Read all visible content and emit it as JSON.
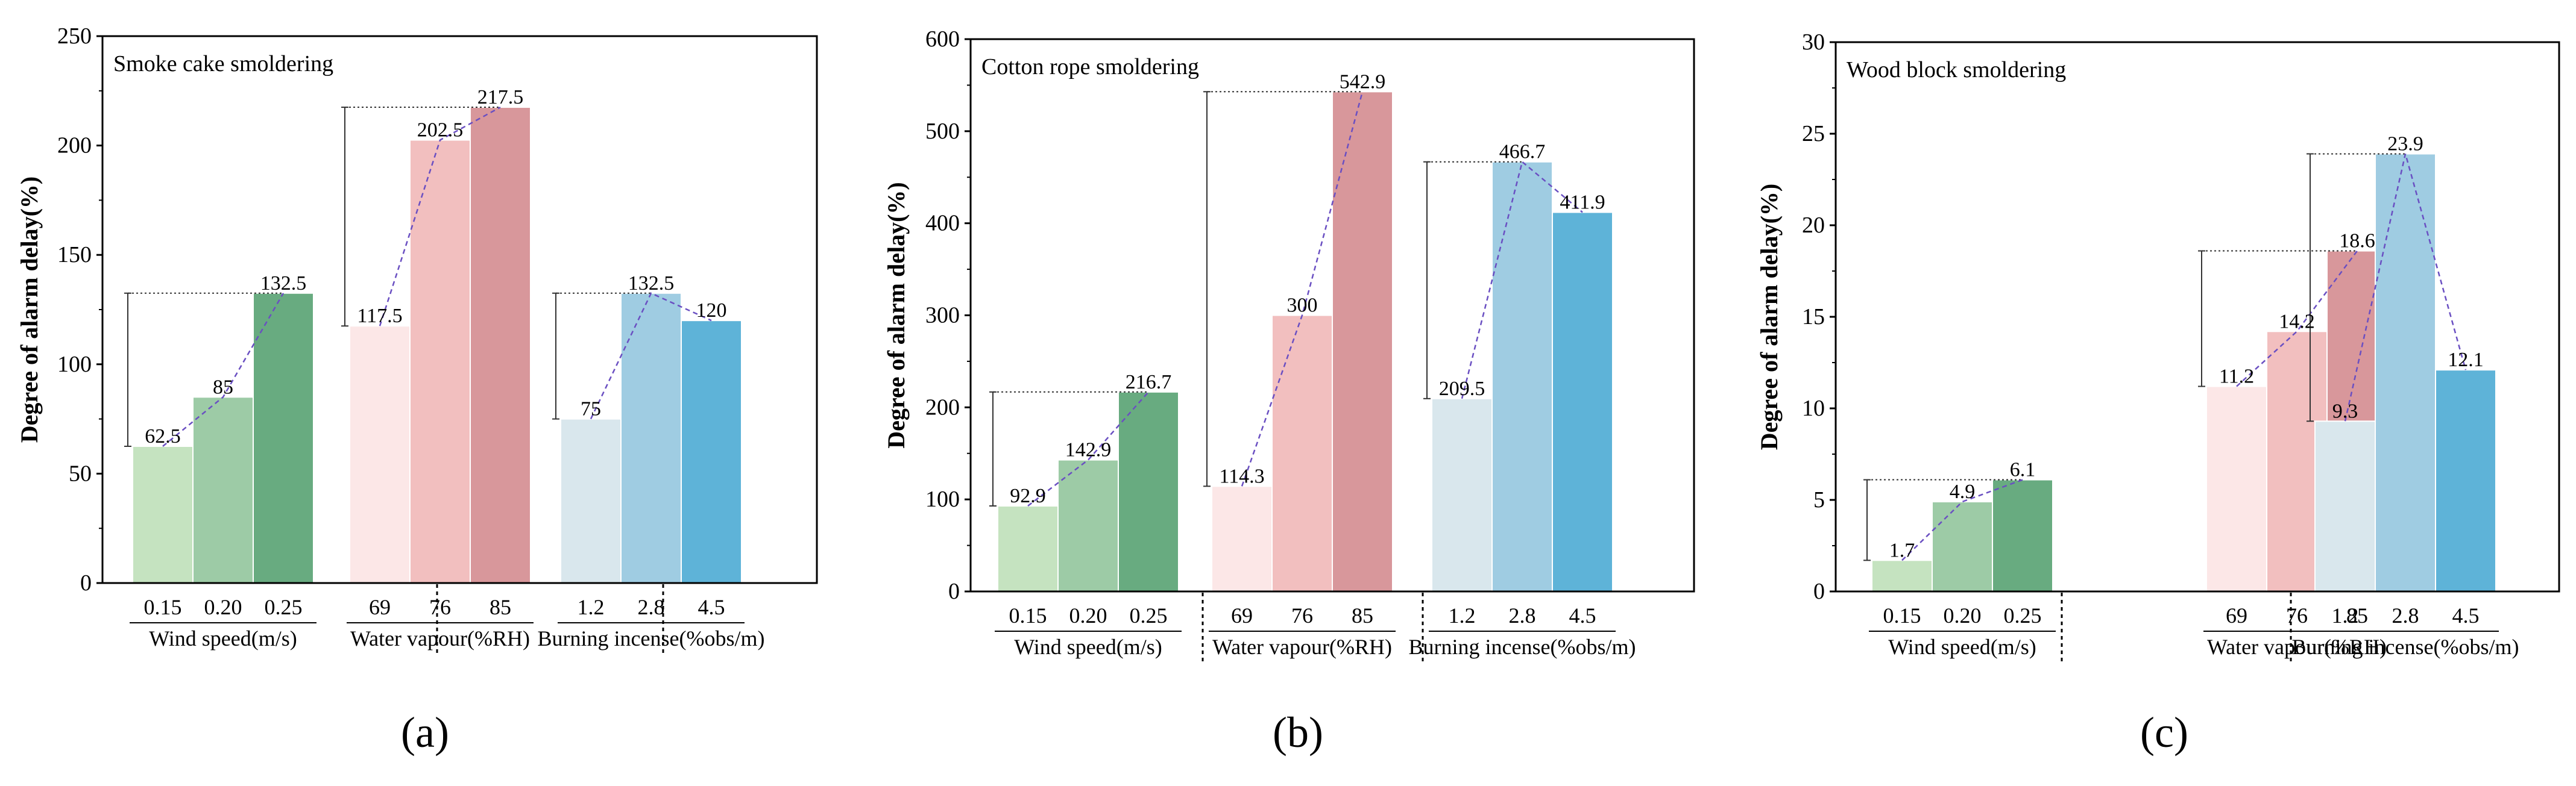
{
  "chart_data": [
    {
      "type": "bar",
      "panel_label": "(a)",
      "title": "Smoke cake smoldering",
      "ylabel": "Degree of alarm delay(%)",
      "ylim": [
        0,
        250
      ],
      "yticks": [
        0,
        50,
        100,
        150,
        200,
        250
      ],
      "groups": [
        {
          "name": "Wind speed(m/s)",
          "categories": [
            "0.15",
            "0.20",
            "0.25"
          ],
          "values": [
            62.5,
            85,
            132.5
          ],
          "labels": [
            "62.5",
            "85",
            "132.5"
          ],
          "colors": [
            "#c5e3c0",
            "#9dcba6",
            "#68ab80"
          ]
        },
        {
          "name": "Water vapour(%RH)",
          "categories": [
            "69",
            "76",
            "85"
          ],
          "values": [
            117.5,
            202.5,
            217.5
          ],
          "labels": [
            "117.5",
            "202.5",
            "217.5"
          ],
          "colors": [
            "#fce7e7",
            "#f2bfbf",
            "#d8979b"
          ]
        },
        {
          "name": "Burning incense(%obs/m)",
          "categories": [
            "1.2",
            "2.8",
            "4.5"
          ],
          "values": [
            75,
            132.5,
            120
          ],
          "labels": [
            "75",
            "132.5",
            "120"
          ],
          "colors": [
            "#d9e7ed",
            "#9fcce2",
            "#5eb3d8"
          ]
        }
      ]
    },
    {
      "type": "bar",
      "panel_label": "(b)",
      "title": "Cotton rope smoldering",
      "ylabel": "Degree of alarm delay(%)",
      "ylim": [
        0,
        600
      ],
      "yticks": [
        0,
        100,
        200,
        300,
        400,
        500,
        600
      ],
      "groups": [
        {
          "name": "Wind speed(m/s)",
          "categories": [
            "0.15",
            "0.20",
            "0.25"
          ],
          "values": [
            92.9,
            142.9,
            216.7
          ],
          "labels": [
            "92.9",
            "142.9",
            "216.7"
          ],
          "colors": [
            "#c5e3c0",
            "#9dcba6",
            "#68ab80"
          ]
        },
        {
          "name": "Water vapour(%RH)",
          "categories": [
            "69",
            "76",
            "85"
          ],
          "values": [
            114.3,
            300,
            542.9
          ],
          "labels": [
            "114.3",
            "300",
            "542.9"
          ],
          "colors": [
            "#fce7e7",
            "#f2bfbf",
            "#d8979b"
          ]
        },
        {
          "name": "Burning incense(%obs/m)",
          "categories": [
            "1.2",
            "2.8",
            "4.5"
          ],
          "values": [
            209.5,
            466.7,
            411.9
          ],
          "labels": [
            "209.5",
            "466.7",
            "411.9"
          ],
          "colors": [
            "#d9e7ed",
            "#9fcce2",
            "#5eb3d8"
          ]
        }
      ]
    },
    {
      "type": "bar",
      "panel_label": "(c)",
      "title": "Wood block smoldering",
      "ylabel": "Degree of alarm delay(%)",
      "ylim": [
        0,
        30
      ],
      "yticks": [
        0,
        5,
        10,
        15,
        20,
        25,
        30
      ],
      "groups": [
        {
          "name": "Wind speed(m/s)",
          "categories": [
            "0.15",
            "0.20",
            "0.25"
          ],
          "values": [
            1.7,
            4.9,
            6.1
          ],
          "labels": [
            "1.7",
            "4.9",
            "6.1"
          ],
          "colors": [
            "#c5e3c0",
            "#9dcba6",
            "#68ab80"
          ]
        },
        {
          "name": "Water vapour(%RH)",
          "categories": [
            "69",
            "76",
            "85"
          ],
          "values": [
            11.2,
            14.2,
            18.6
          ],
          "labels": [
            "11.2",
            "14.2",
            "18.6"
          ],
          "colors": [
            "#fce7e7",
            "#f2bfbf",
            "#d8979b"
          ]
        },
        {
          "name": "Burning incense(%obs/m)",
          "categories": [
            "1.2",
            "2.8",
            "4.5"
          ],
          "values": [
            9.3,
            23.9,
            12.1
          ],
          "labels": [
            "9.3",
            "23.9",
            "12.1"
          ],
          "colors": [
            "#d9e7ed",
            "#9fcce2",
            "#5eb3d8"
          ]
        }
      ]
    }
  ]
}
